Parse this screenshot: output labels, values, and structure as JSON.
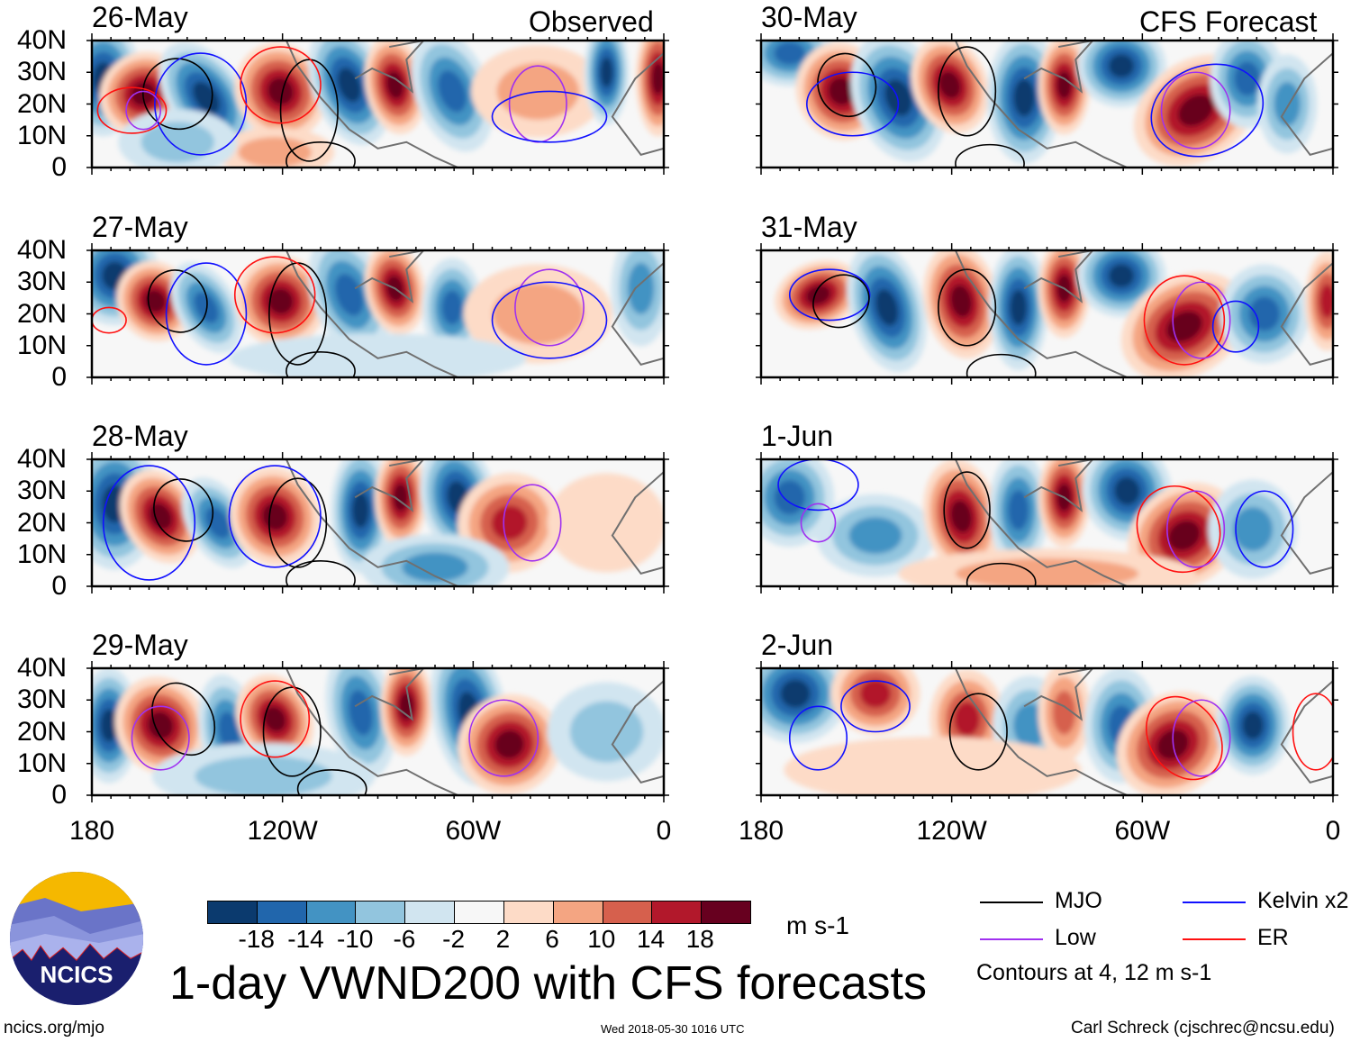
{
  "header": {
    "left_tag": "Observed",
    "right_tag": "CFS Forecast"
  },
  "panels_left": [
    {
      "date": "26-May"
    },
    {
      "date": "27-May"
    },
    {
      "date": "28-May"
    },
    {
      "date": "29-May"
    }
  ],
  "panels_right": [
    {
      "date": "30-May"
    },
    {
      "date": "31-May"
    },
    {
      "date": "1-Jun"
    },
    {
      "date": "2-Jun"
    }
  ],
  "y_ticks": [
    "40N",
    "30N",
    "20N",
    "10N",
    "0"
  ],
  "x_ticks": [
    "180",
    "120W",
    "60W",
    "0"
  ],
  "colorbar": {
    "colors": [
      "#0b3a6e",
      "#2166ac",
      "#4393c3",
      "#92c5de",
      "#d1e5f0",
      "#f7f7f7",
      "#fddbc7",
      "#f4a582",
      "#d6604d",
      "#b2182b",
      "#67001f"
    ],
    "labels": [
      "-18",
      "-14",
      "-10",
      "-6",
      "-2",
      "2",
      "6",
      "10",
      "14",
      "18"
    ],
    "units": "m s-1"
  },
  "legend": {
    "items": [
      {
        "label": "MJO",
        "color": "#000000"
      },
      {
        "label": "Kelvin x2",
        "color": "#1010ff"
      },
      {
        "label": "Low",
        "color": "#a030f0"
      },
      {
        "label": "ER",
        "color": "#ff1010"
      }
    ],
    "note": "Contours at 4, 12 m s-1"
  },
  "title": "1-day VWND200 with CFS forecasts",
  "logo_text": "NCICS",
  "footer": {
    "url": "ncics.org/mjo",
    "timestamp": "Wed 2018-05-30 1016 UTC",
    "author": "Carl Schreck (cjschrec@ncsu.edu)"
  }
}
